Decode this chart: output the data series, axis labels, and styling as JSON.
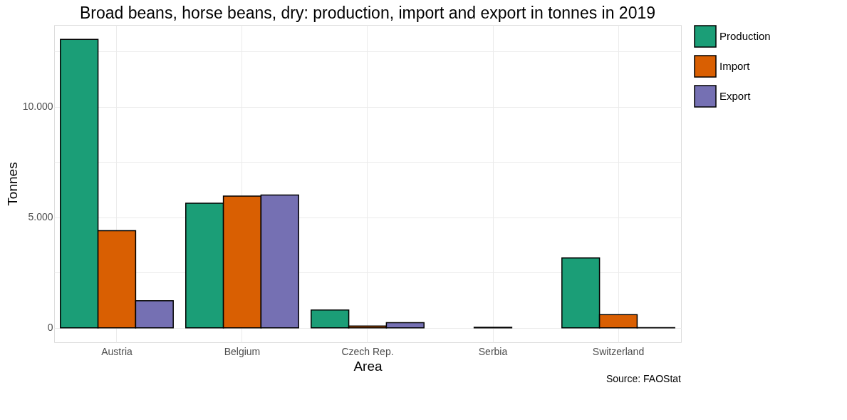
{
  "chart_data": {
    "type": "bar",
    "title": "Broad beans, horse beans, dry: production, import and export in tonnes in 2019",
    "xlabel": "Area",
    "ylabel": "Tonnes",
    "categories": [
      "Austria",
      "Belgium",
      "Czech Rep.",
      "Serbia",
      "Switzerland"
    ],
    "series": [
      {
        "name": "Production",
        "color": "#1b9e77",
        "values": [
          13050,
          5640,
          810,
          null,
          3160
        ]
      },
      {
        "name": "Import",
        "color": "#d95f02",
        "values": [
          4400,
          5960,
          80,
          30,
          600
        ]
      },
      {
        "name": "Export",
        "color": "#7570b3",
        "values": [
          1230,
          6010,
          240,
          null,
          10
        ]
      }
    ],
    "ylim": [
      -650,
      13700
    ],
    "yticks": [
      0,
      {
        "value": 2500,
        "label": null
      },
      {
        "value": 5000,
        "label": "5.000"
      },
      {
        "value": 7500,
        "label": null
      },
      {
        "value": 10000,
        "label": "10.000"
      },
      {
        "value": 12500,
        "label": null
      }
    ],
    "grid": true,
    "legend": "right",
    "annotations": [
      "Source: FAOStat"
    ]
  }
}
